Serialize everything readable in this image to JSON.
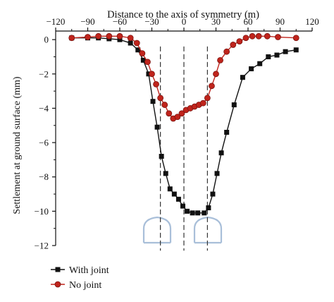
{
  "chart_data": {
    "type": "line",
    "xlabel": "Distance to the axis of symmetry (m)",
    "ylabel": "Settlement at ground surface (mm)",
    "xlim": [
      -120,
      120
    ],
    "ylim": [
      -12,
      0.5
    ],
    "xticks": [
      -120,
      -90,
      -60,
      -30,
      0,
      30,
      60,
      90,
      120
    ],
    "xtick_labels": [
      "−120",
      "−90",
      "−60",
      "−30",
      "0",
      "30",
      "60",
      "90",
      "120"
    ],
    "yticks": [
      0,
      -2,
      -4,
      -6,
      -8,
      -10,
      -12
    ],
    "ytick_labels": [
      "0",
      "−2",
      "−4",
      "−6",
      "−8",
      "−10",
      "−12"
    ],
    "x_axis_position": "top",
    "legend_position": "bottom-left",
    "reference_lines_x": [
      -30,
      0,
      30
    ],
    "series": [
      {
        "name": "With joint",
        "color": "#111111",
        "marker": "square",
        "x": [
          -105,
          -90,
          -80,
          -70,
          -60,
          -50,
          -43,
          -38,
          -33,
          -29,
          -25,
          -21,
          -17,
          -13,
          -9,
          -5,
          -1,
          3,
          8,
          13,
          19,
          23,
          27,
          31,
          35,
          40,
          47,
          55,
          63,
          71,
          79,
          87,
          95,
          105
        ],
        "y": [
          0.1,
          0.1,
          0.1,
          0.05,
          0.0,
          -0.2,
          -0.6,
          -1.2,
          -2.0,
          -3.6,
          -5.1,
          -6.8,
          -7.8,
          -8.7,
          -9.0,
          -9.3,
          -9.7,
          -10.0,
          -10.1,
          -10.1,
          -10.1,
          -9.8,
          -9.0,
          -7.8,
          -6.6,
          -5.4,
          -3.8,
          -2.2,
          -1.7,
          -1.4,
          -1.0,
          -0.9,
          -0.7,
          -0.6
        ]
      },
      {
        "name": "No joint",
        "color": "#c0241c",
        "marker": "circle",
        "x": [
          -105,
          -90,
          -80,
          -70,
          -60,
          -50,
          -44,
          -39,
          -34,
          -30,
          -26,
          -22,
          -18,
          -14,
          -10,
          -6,
          -2,
          2,
          6,
          10,
          14,
          18,
          22,
          26,
          30,
          34,
          40,
          46,
          52,
          58,
          64,
          70,
          78,
          88,
          105
        ],
        "y": [
          0.1,
          0.15,
          0.2,
          0.2,
          0.2,
          0.1,
          -0.2,
          -0.8,
          -1.3,
          -2.0,
          -2.6,
          -3.4,
          -3.8,
          -4.3,
          -4.6,
          -4.5,
          -4.3,
          -4.1,
          -4.0,
          -3.9,
          -3.8,
          -3.7,
          -3.4,
          -2.7,
          -2.0,
          -1.2,
          -0.7,
          -0.3,
          -0.1,
          0.1,
          0.2,
          0.2,
          0.2,
          0.15,
          0.1
        ]
      }
    ],
    "grid": false
  }
}
